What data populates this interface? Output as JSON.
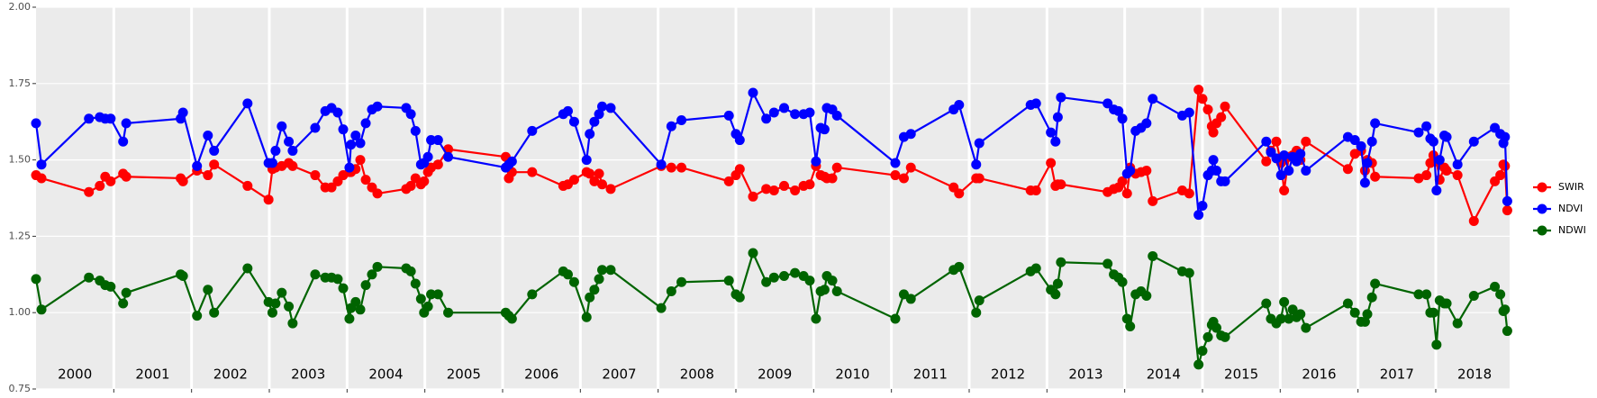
{
  "chart_data": {
    "type": "line",
    "x": [
      2000.0,
      2000.07,
      2000.68,
      2000.82,
      2000.89,
      2000.96,
      2001.12,
      2001.16,
      2001.86,
      2001.89,
      2002.07,
      2002.21,
      2002.29,
      2002.72,
      2002.99,
      2003.04,
      2003.08,
      2003.16,
      2003.25,
      2003.3,
      2003.59,
      2003.72,
      2003.8,
      2003.88,
      2003.95,
      2004.03,
      2004.05,
      2004.11,
      2004.17,
      2004.24,
      2004.32,
      2004.39,
      2004.76,
      2004.82,
      2004.88,
      2004.95,
      2004.99,
      2005.04,
      2005.08,
      2005.17,
      2005.3,
      2006.04,
      2006.08,
      2006.12,
      2006.38,
      2006.78,
      2006.84,
      2006.92,
      2007.08,
      2007.12,
      2007.18,
      2007.24,
      2007.28,
      2007.39,
      2008.04,
      2008.17,
      2008.3,
      2008.91,
      2009.0,
      2009.05,
      2009.22,
      2009.39,
      2009.49,
      2009.62,
      2009.76,
      2009.87,
      2009.95,
      2010.03,
      2010.09,
      2010.14,
      2010.17,
      2010.24,
      2010.3,
      2011.05,
      2011.16,
      2011.25,
      2011.8,
      2011.87,
      2012.09,
      2012.13,
      2012.79,
      2012.86,
      2013.05,
      2013.11,
      2013.14,
      2013.18,
      2013.78,
      2013.86,
      2013.92,
      2013.97,
      2014.03,
      2014.07,
      2014.14,
      2014.21,
      2014.28,
      2014.36,
      2014.74,
      2014.83,
      2014.95,
      2015.0,
      2015.07,
      2015.12,
      2015.14,
      2015.18,
      2015.24,
      2015.29,
      2015.82,
      2015.88,
      2015.95,
      2016.01,
      2016.05,
      2016.11,
      2016.16,
      2016.21,
      2016.26,
      2016.33,
      2016.87,
      2016.96,
      2017.04,
      2017.09,
      2017.12,
      2017.18,
      2017.22,
      2017.78,
      2017.88,
      2017.93,
      2017.97,
      2018.01,
      2018.05,
      2018.11,
      2018.14,
      2018.28,
      2018.49,
      2018.76,
      2018.83,
      2018.87,
      2018.89,
      2018.92
    ],
    "series": [
      {
        "name": "SWIR",
        "color": "#ff0000",
        "values": [
          1.45,
          1.44,
          1.395,
          1.415,
          1.445,
          1.43,
          1.455,
          1.445,
          1.44,
          1.43,
          1.465,
          1.45,
          1.485,
          1.415,
          1.37,
          1.47,
          1.475,
          1.48,
          1.49,
          1.48,
          1.45,
          1.41,
          1.41,
          1.43,
          1.45,
          1.46,
          1.46,
          1.47,
          1.5,
          1.435,
          1.41,
          1.39,
          1.405,
          1.415,
          1.44,
          1.42,
          1.43,
          1.46,
          1.475,
          1.485,
          1.535,
          1.51,
          1.44,
          1.46,
          1.46,
          1.415,
          1.42,
          1.435,
          1.46,
          1.455,
          1.43,
          1.455,
          1.42,
          1.405,
          1.48,
          1.475,
          1.475,
          1.43,
          1.45,
          1.47,
          1.38,
          1.405,
          1.4,
          1.415,
          1.4,
          1.415,
          1.42,
          1.48,
          1.45,
          1.445,
          1.44,
          1.44,
          1.475,
          1.45,
          1.44,
          1.475,
          1.41,
          1.39,
          1.44,
          1.44,
          1.4,
          1.4,
          1.49,
          1.415,
          1.42,
          1.42,
          1.395,
          1.405,
          1.41,
          1.43,
          1.39,
          1.475,
          1.455,
          1.46,
          1.465,
          1.365,
          1.4,
          1.39,
          1.73,
          1.7,
          1.665,
          1.61,
          1.59,
          1.62,
          1.64,
          1.675,
          1.495,
          1.53,
          1.56,
          1.49,
          1.4,
          1.51,
          1.515,
          1.53,
          1.5,
          1.56,
          1.47,
          1.52,
          1.53,
          1.465,
          1.5,
          1.49,
          1.445,
          1.44,
          1.45,
          1.49,
          1.515,
          1.495,
          1.435,
          1.475,
          1.465,
          1.45,
          1.3,
          1.43,
          1.45,
          1.485,
          1.48,
          1.335
        ]
      },
      {
        "name": "NDVI",
        "color": "#0000ff",
        "values": [
          1.62,
          1.485,
          1.635,
          1.64,
          1.635,
          1.635,
          1.56,
          1.62,
          1.635,
          1.655,
          1.48,
          1.58,
          1.53,
          1.685,
          1.49,
          1.49,
          1.53,
          1.61,
          1.56,
          1.53,
          1.605,
          1.66,
          1.67,
          1.655,
          1.6,
          1.475,
          1.55,
          1.58,
          1.555,
          1.62,
          1.665,
          1.675,
          1.67,
          1.65,
          1.595,
          1.485,
          1.49,
          1.51,
          1.565,
          1.565,
          1.51,
          1.475,
          1.485,
          1.495,
          1.595,
          1.65,
          1.66,
          1.625,
          1.5,
          1.585,
          1.625,
          1.65,
          1.675,
          1.67,
          1.485,
          1.61,
          1.63,
          1.645,
          1.585,
          1.565,
          1.72,
          1.635,
          1.655,
          1.67,
          1.65,
          1.65,
          1.655,
          1.495,
          1.605,
          1.6,
          1.67,
          1.665,
          1.645,
          1.49,
          1.575,
          1.585,
          1.665,
          1.68,
          1.485,
          1.555,
          1.68,
          1.685,
          1.59,
          1.56,
          1.64,
          1.705,
          1.685,
          1.665,
          1.66,
          1.635,
          1.455,
          1.465,
          1.595,
          1.605,
          1.62,
          1.7,
          1.645,
          1.655,
          1.32,
          1.35,
          1.45,
          1.465,
          1.5,
          1.465,
          1.43,
          1.43,
          1.56,
          1.525,
          1.505,
          1.45,
          1.515,
          1.465,
          1.51,
          1.495,
          1.52,
          1.465,
          1.575,
          1.565,
          1.545,
          1.425,
          1.49,
          1.56,
          1.62,
          1.59,
          1.61,
          1.57,
          1.56,
          1.4,
          1.5,
          1.58,
          1.575,
          1.485,
          1.56,
          1.605,
          1.585,
          1.555,
          1.575,
          1.365
        ]
      },
      {
        "name": "NDWI",
        "color": "#006400",
        "values": [
          1.11,
          1.01,
          1.115,
          1.105,
          1.09,
          1.085,
          1.03,
          1.065,
          1.125,
          1.12,
          0.99,
          1.075,
          1.0,
          1.145,
          1.035,
          1.0,
          1.03,
          1.065,
          1.02,
          0.965,
          1.125,
          1.115,
          1.115,
          1.11,
          1.08,
          0.98,
          1.015,
          1.035,
          1.01,
          1.09,
          1.125,
          1.15,
          1.145,
          1.135,
          1.095,
          1.045,
          1.0,
          1.02,
          1.06,
          1.06,
          1.0,
          1.0,
          0.99,
          0.98,
          1.06,
          1.135,
          1.125,
          1.1,
          0.985,
          1.05,
          1.075,
          1.11,
          1.14,
          1.14,
          1.015,
          1.07,
          1.1,
          1.105,
          1.06,
          1.05,
          1.195,
          1.1,
          1.115,
          1.12,
          1.13,
          1.12,
          1.105,
          0.98,
          1.07,
          1.075,
          1.12,
          1.105,
          1.07,
          0.98,
          1.06,
          1.045,
          1.14,
          1.15,
          1.0,
          1.04,
          1.135,
          1.145,
          1.075,
          1.06,
          1.095,
          1.165,
          1.16,
          1.125,
          1.115,
          1.1,
          0.98,
          0.955,
          1.06,
          1.07,
          1.055,
          1.185,
          1.135,
          1.13,
          0.83,
          0.875,
          0.92,
          0.96,
          0.97,
          0.95,
          0.925,
          0.92,
          1.03,
          0.98,
          0.965,
          0.98,
          1.035,
          0.98,
          1.01,
          0.985,
          0.995,
          0.95,
          1.03,
          1.0,
          0.97,
          0.97,
          0.995,
          1.05,
          1.095,
          1.06,
          1.06,
          1.0,
          1.0,
          0.895,
          1.04,
          1.03,
          1.03,
          0.965,
          1.055,
          1.085,
          1.06,
          1.005,
          1.01,
          0.94
        ]
      }
    ],
    "xlim": [
      2000,
      2018.95
    ],
    "xticks": [
      2001,
      2002,
      2003,
      2004,
      2005,
      2006,
      2007,
      2008,
      2009,
      2010,
      2011,
      2012,
      2013,
      2014,
      2015,
      2016,
      2017,
      2018
    ],
    "year_labels": [
      "2000",
      "2001",
      "2002",
      "2003",
      "2004",
      "2005",
      "2006",
      "2007",
      "2008",
      "2009",
      "2010",
      "2011",
      "2012",
      "2013",
      "2014",
      "2015",
      "2016",
      "2017",
      "2018"
    ],
    "ylim": [
      0.75,
      2.0
    ],
    "yticks": [
      0.75,
      {
        "value": 1.0,
        "label": "1.00"
      },
      1.25,
      {
        "value": 1.5,
        "label": "1.50"
      },
      1.75,
      {
        "value": 2.0,
        "label": "2.00"
      }
    ],
    "grid": true,
    "legend_position": "right"
  }
}
